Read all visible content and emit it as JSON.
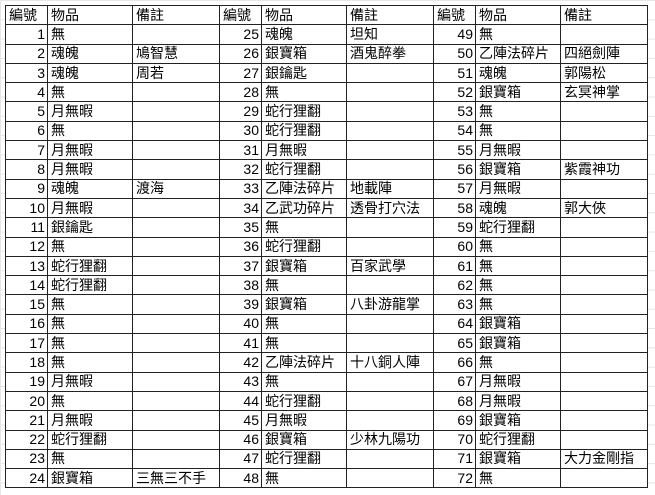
{
  "headers": [
    "編號",
    "物品",
    "備註"
  ],
  "rows": [
    [
      [
        "1",
        "無",
        ""
      ],
      [
        "25",
        "魂魄",
        "坦知"
      ],
      [
        "49",
        "無",
        ""
      ]
    ],
    [
      [
        "2",
        "魂魄",
        "鳩智慧"
      ],
      [
        "26",
        "銀寶箱",
        "酒鬼醉拳"
      ],
      [
        "50",
        "乙陣法碎片",
        "四絕劍陣"
      ]
    ],
    [
      [
        "3",
        "魂魄",
        "周若"
      ],
      [
        "27",
        "銀鑰匙",
        ""
      ],
      [
        "51",
        "魂魄",
        "郭陽松"
      ]
    ],
    [
      [
        "4",
        "無",
        ""
      ],
      [
        "28",
        "無",
        ""
      ],
      [
        "52",
        "銀寶箱",
        "玄冥神掌"
      ]
    ],
    [
      [
        "5",
        "月無暇",
        ""
      ],
      [
        "29",
        "蛇行狸翻",
        ""
      ],
      [
        "53",
        "無",
        ""
      ]
    ],
    [
      [
        "6",
        "無",
        ""
      ],
      [
        "30",
        "蛇行狸翻",
        ""
      ],
      [
        "54",
        "無",
        ""
      ]
    ],
    [
      [
        "7",
        "月無暇",
        ""
      ],
      [
        "31",
        "月無暇",
        ""
      ],
      [
        "55",
        "月無暇",
        ""
      ]
    ],
    [
      [
        "8",
        "月無暇",
        ""
      ],
      [
        "32",
        "蛇行狸翻",
        ""
      ],
      [
        "56",
        "銀寶箱",
        "紫霞神功"
      ]
    ],
    [
      [
        "9",
        "魂魄",
        "渡海"
      ],
      [
        "33",
        "乙陣法碎片",
        "地載陣"
      ],
      [
        "57",
        "月無暇",
        ""
      ]
    ],
    [
      [
        "10",
        "月無暇",
        ""
      ],
      [
        "34",
        "乙武功碎片",
        "透骨打穴法"
      ],
      [
        "58",
        "魂魄",
        "郭大俠"
      ]
    ],
    [
      [
        "11",
        "銀鑰匙",
        ""
      ],
      [
        "35",
        "無",
        ""
      ],
      [
        "59",
        "蛇行狸翻",
        ""
      ]
    ],
    [
      [
        "12",
        "無",
        ""
      ],
      [
        "36",
        "蛇行狸翻",
        ""
      ],
      [
        "60",
        "無",
        ""
      ]
    ],
    [
      [
        "13",
        "蛇行狸翻",
        ""
      ],
      [
        "37",
        "銀寶箱",
        "百家武學"
      ],
      [
        "61",
        "無",
        ""
      ]
    ],
    [
      [
        "14",
        "蛇行狸翻",
        ""
      ],
      [
        "38",
        "無",
        ""
      ],
      [
        "62",
        "無",
        ""
      ]
    ],
    [
      [
        "15",
        "無",
        ""
      ],
      [
        "39",
        "銀寶箱",
        "八卦游龍掌"
      ],
      [
        "63",
        "無",
        ""
      ]
    ],
    [
      [
        "16",
        "無",
        ""
      ],
      [
        "40",
        "無",
        ""
      ],
      [
        "64",
        "銀寶箱",
        ""
      ]
    ],
    [
      [
        "17",
        "無",
        ""
      ],
      [
        "41",
        "無",
        ""
      ],
      [
        "65",
        "銀寶箱",
        ""
      ]
    ],
    [
      [
        "18",
        "無",
        ""
      ],
      [
        "42",
        "乙陣法碎片",
        "十八銅人陣"
      ],
      [
        "66",
        "無",
        ""
      ]
    ],
    [
      [
        "19",
        "月無暇",
        ""
      ],
      [
        "43",
        "無",
        ""
      ],
      [
        "67",
        "月無暇",
        ""
      ]
    ],
    [
      [
        "20",
        "無",
        ""
      ],
      [
        "44",
        "蛇行狸翻",
        ""
      ],
      [
        "68",
        "月無暇",
        ""
      ]
    ],
    [
      [
        "21",
        "月無暇",
        ""
      ],
      [
        "45",
        "月無暇",
        ""
      ],
      [
        "69",
        "銀寶箱",
        ""
      ]
    ],
    [
      [
        "22",
        "蛇行狸翻",
        ""
      ],
      [
        "46",
        "銀寶箱",
        "少林九陽功"
      ],
      [
        "70",
        "蛇行狸翻",
        ""
      ]
    ],
    [
      [
        "23",
        "無",
        ""
      ],
      [
        "47",
        "蛇行狸翻",
        ""
      ],
      [
        "71",
        "銀寶箱",
        "大力金剛指"
      ]
    ],
    [
      [
        "24",
        "銀寶箱",
        "三無三不手"
      ],
      [
        "48",
        "無",
        ""
      ],
      [
        "72",
        "無",
        ""
      ]
    ]
  ]
}
